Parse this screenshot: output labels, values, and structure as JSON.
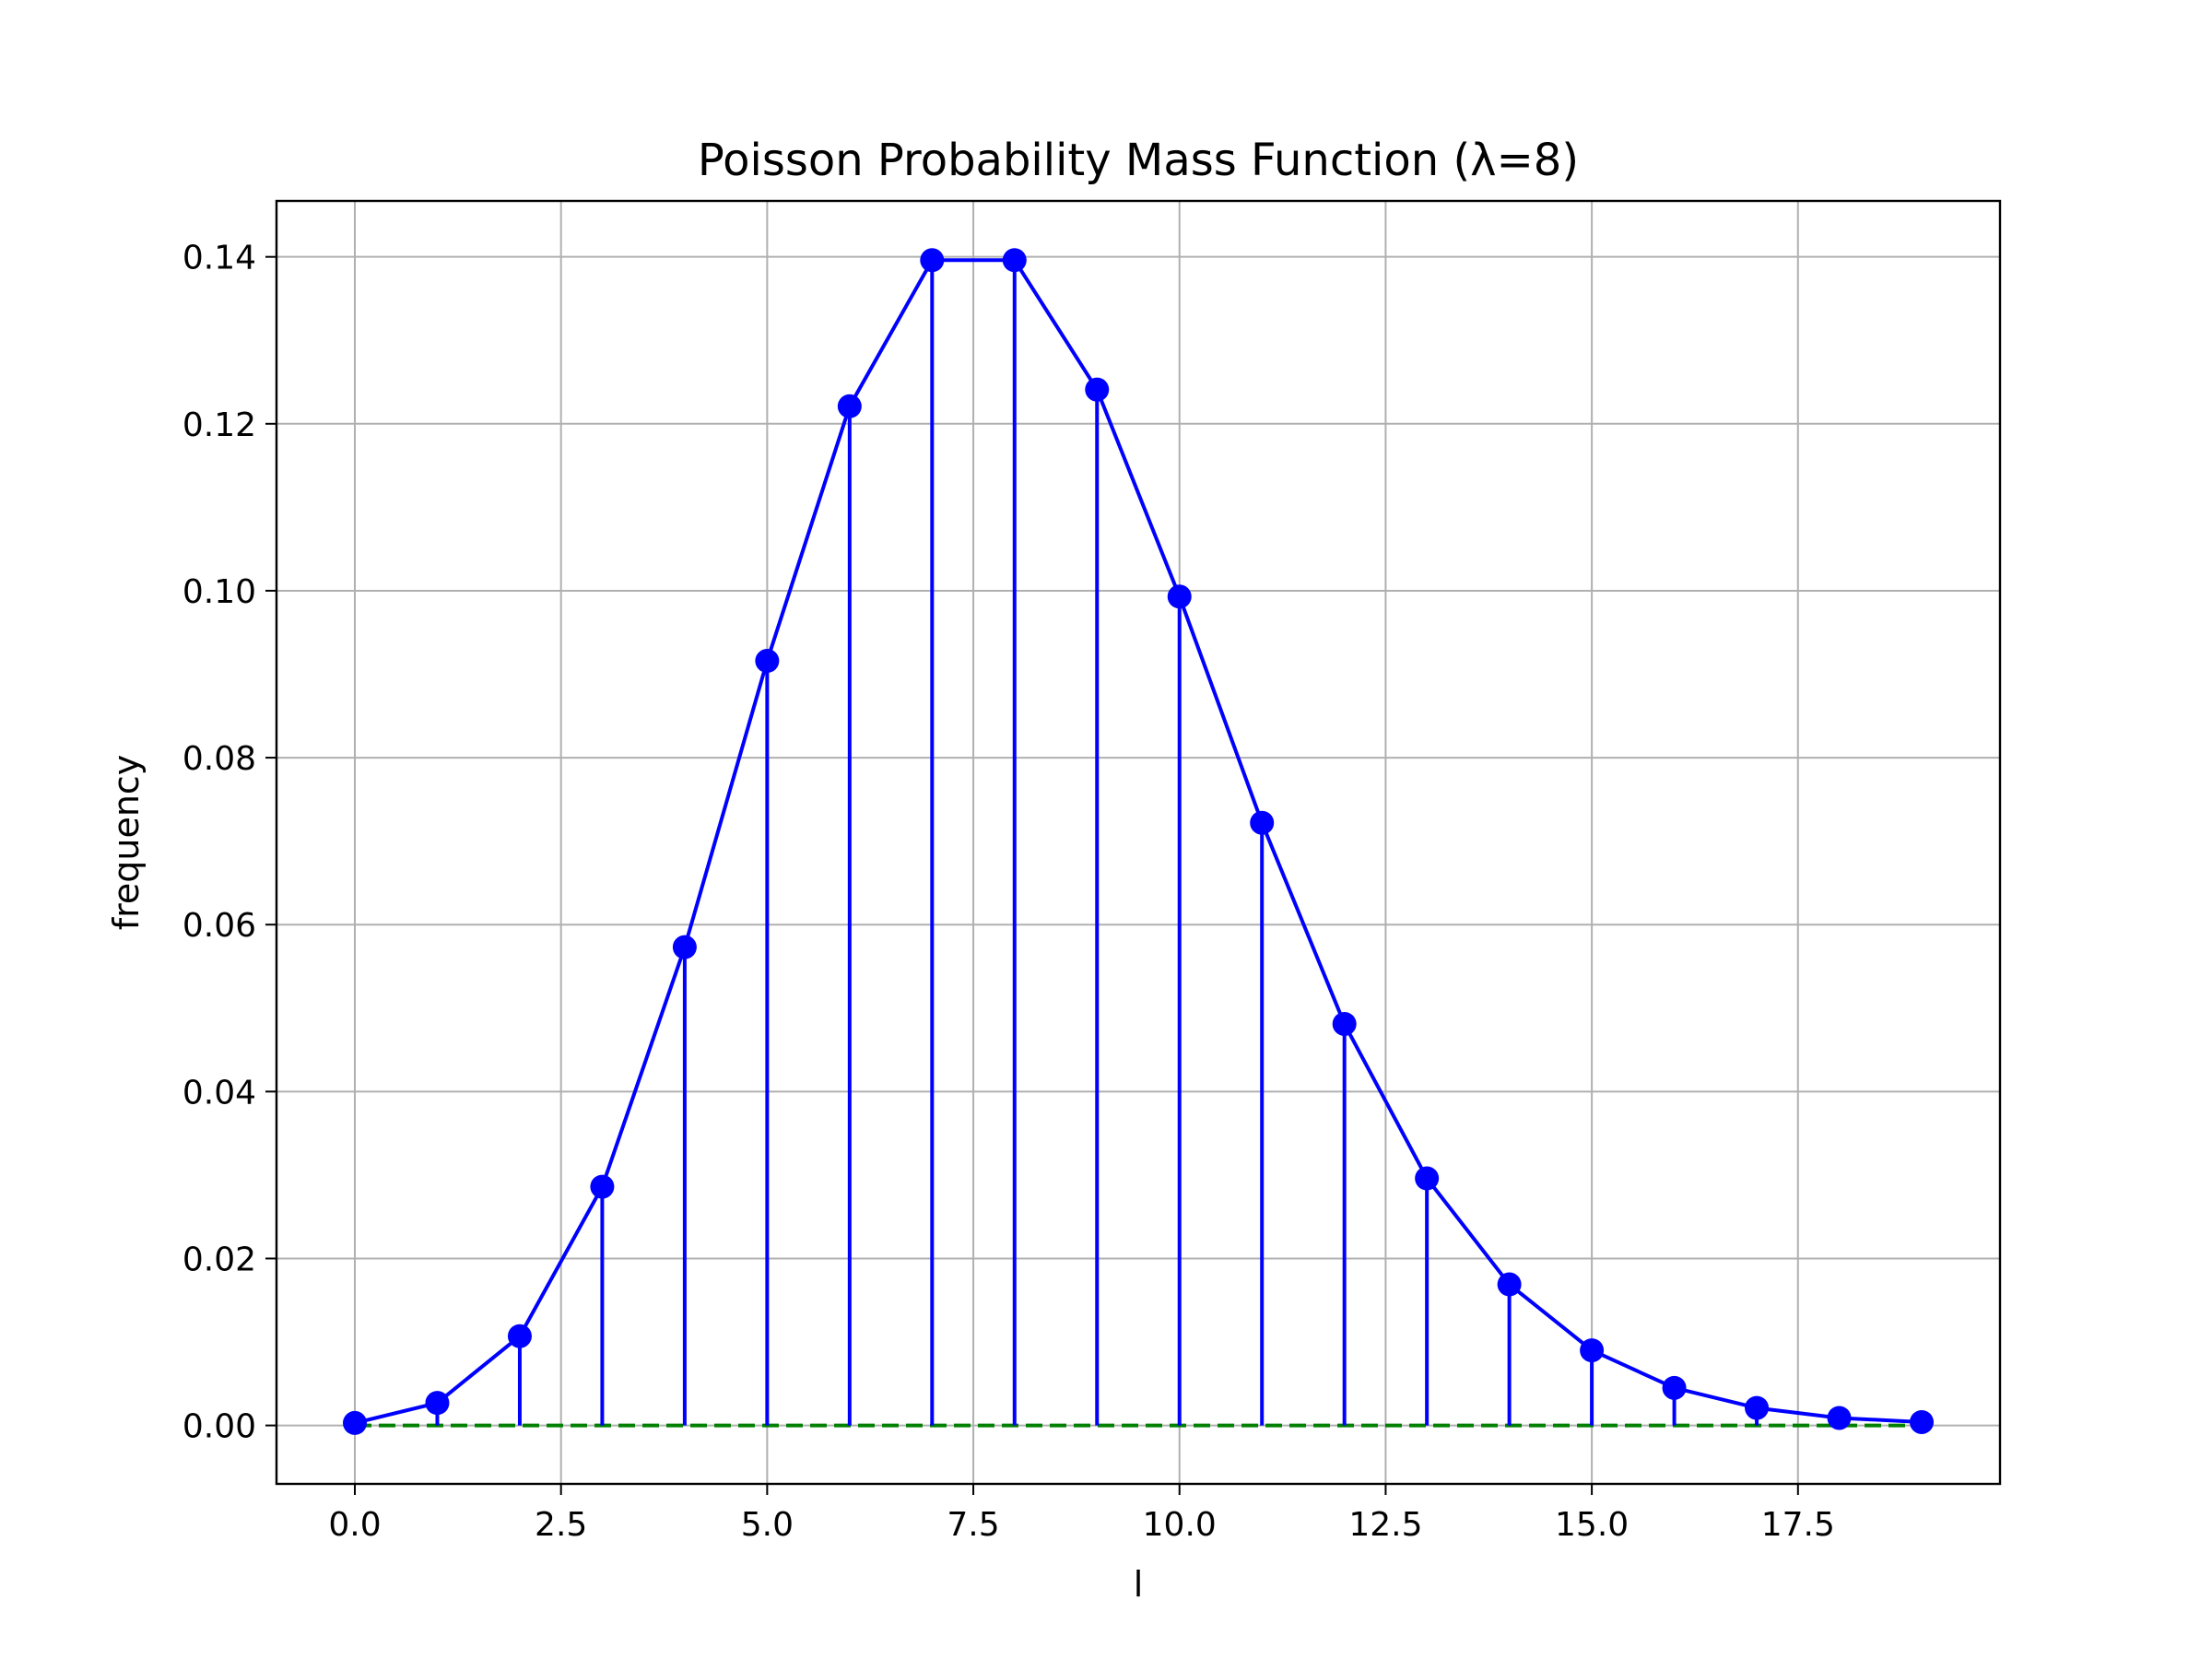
{
  "chart_data": {
    "type": "line",
    "title": "Poisson Probability Mass Function (λ=8)",
    "xlabel": "l",
    "ylabel": "frequency",
    "xlim": [
      -0.95,
      19.95
    ],
    "ylim": [
      -0.007,
      0.1467
    ],
    "xticks": [
      0.0,
      2.5,
      5.0,
      7.5,
      10.0,
      12.5,
      15.0,
      17.5
    ],
    "xtick_labels": [
      "0.0",
      "2.5",
      "5.0",
      "7.5",
      "10.0",
      "12.5",
      "15.0",
      "17.5"
    ],
    "yticks": [
      0.0,
      0.02,
      0.04,
      0.06,
      0.08,
      0.1,
      0.12,
      0.14
    ],
    "ytick_labels": [
      "0.00",
      "0.02",
      "0.04",
      "0.06",
      "0.08",
      "0.10",
      "0.12",
      "0.14"
    ],
    "grid": true,
    "series": [
      {
        "x": [
          0,
          1,
          2,
          3,
          4,
          5,
          6,
          7,
          8,
          9,
          10,
          11,
          12,
          13,
          14,
          15,
          16,
          17,
          18,
          19
        ],
        "values": [
          0.0003,
          0.0027,
          0.0107,
          0.0286,
          0.0573,
          0.0916,
          0.1221,
          0.1396,
          0.1396,
          0.1241,
          0.0993,
          0.0722,
          0.0481,
          0.0296,
          0.0169,
          0.009,
          0.0045,
          0.0021,
          0.0009,
          0.0004
        ],
        "color": "#0000ff",
        "style": "line-with-markers-and-stems"
      }
    ],
    "baseline": {
      "y": 0,
      "x_from": 0,
      "x_to": 19,
      "color": "#008000",
      "style": "dashed"
    }
  }
}
